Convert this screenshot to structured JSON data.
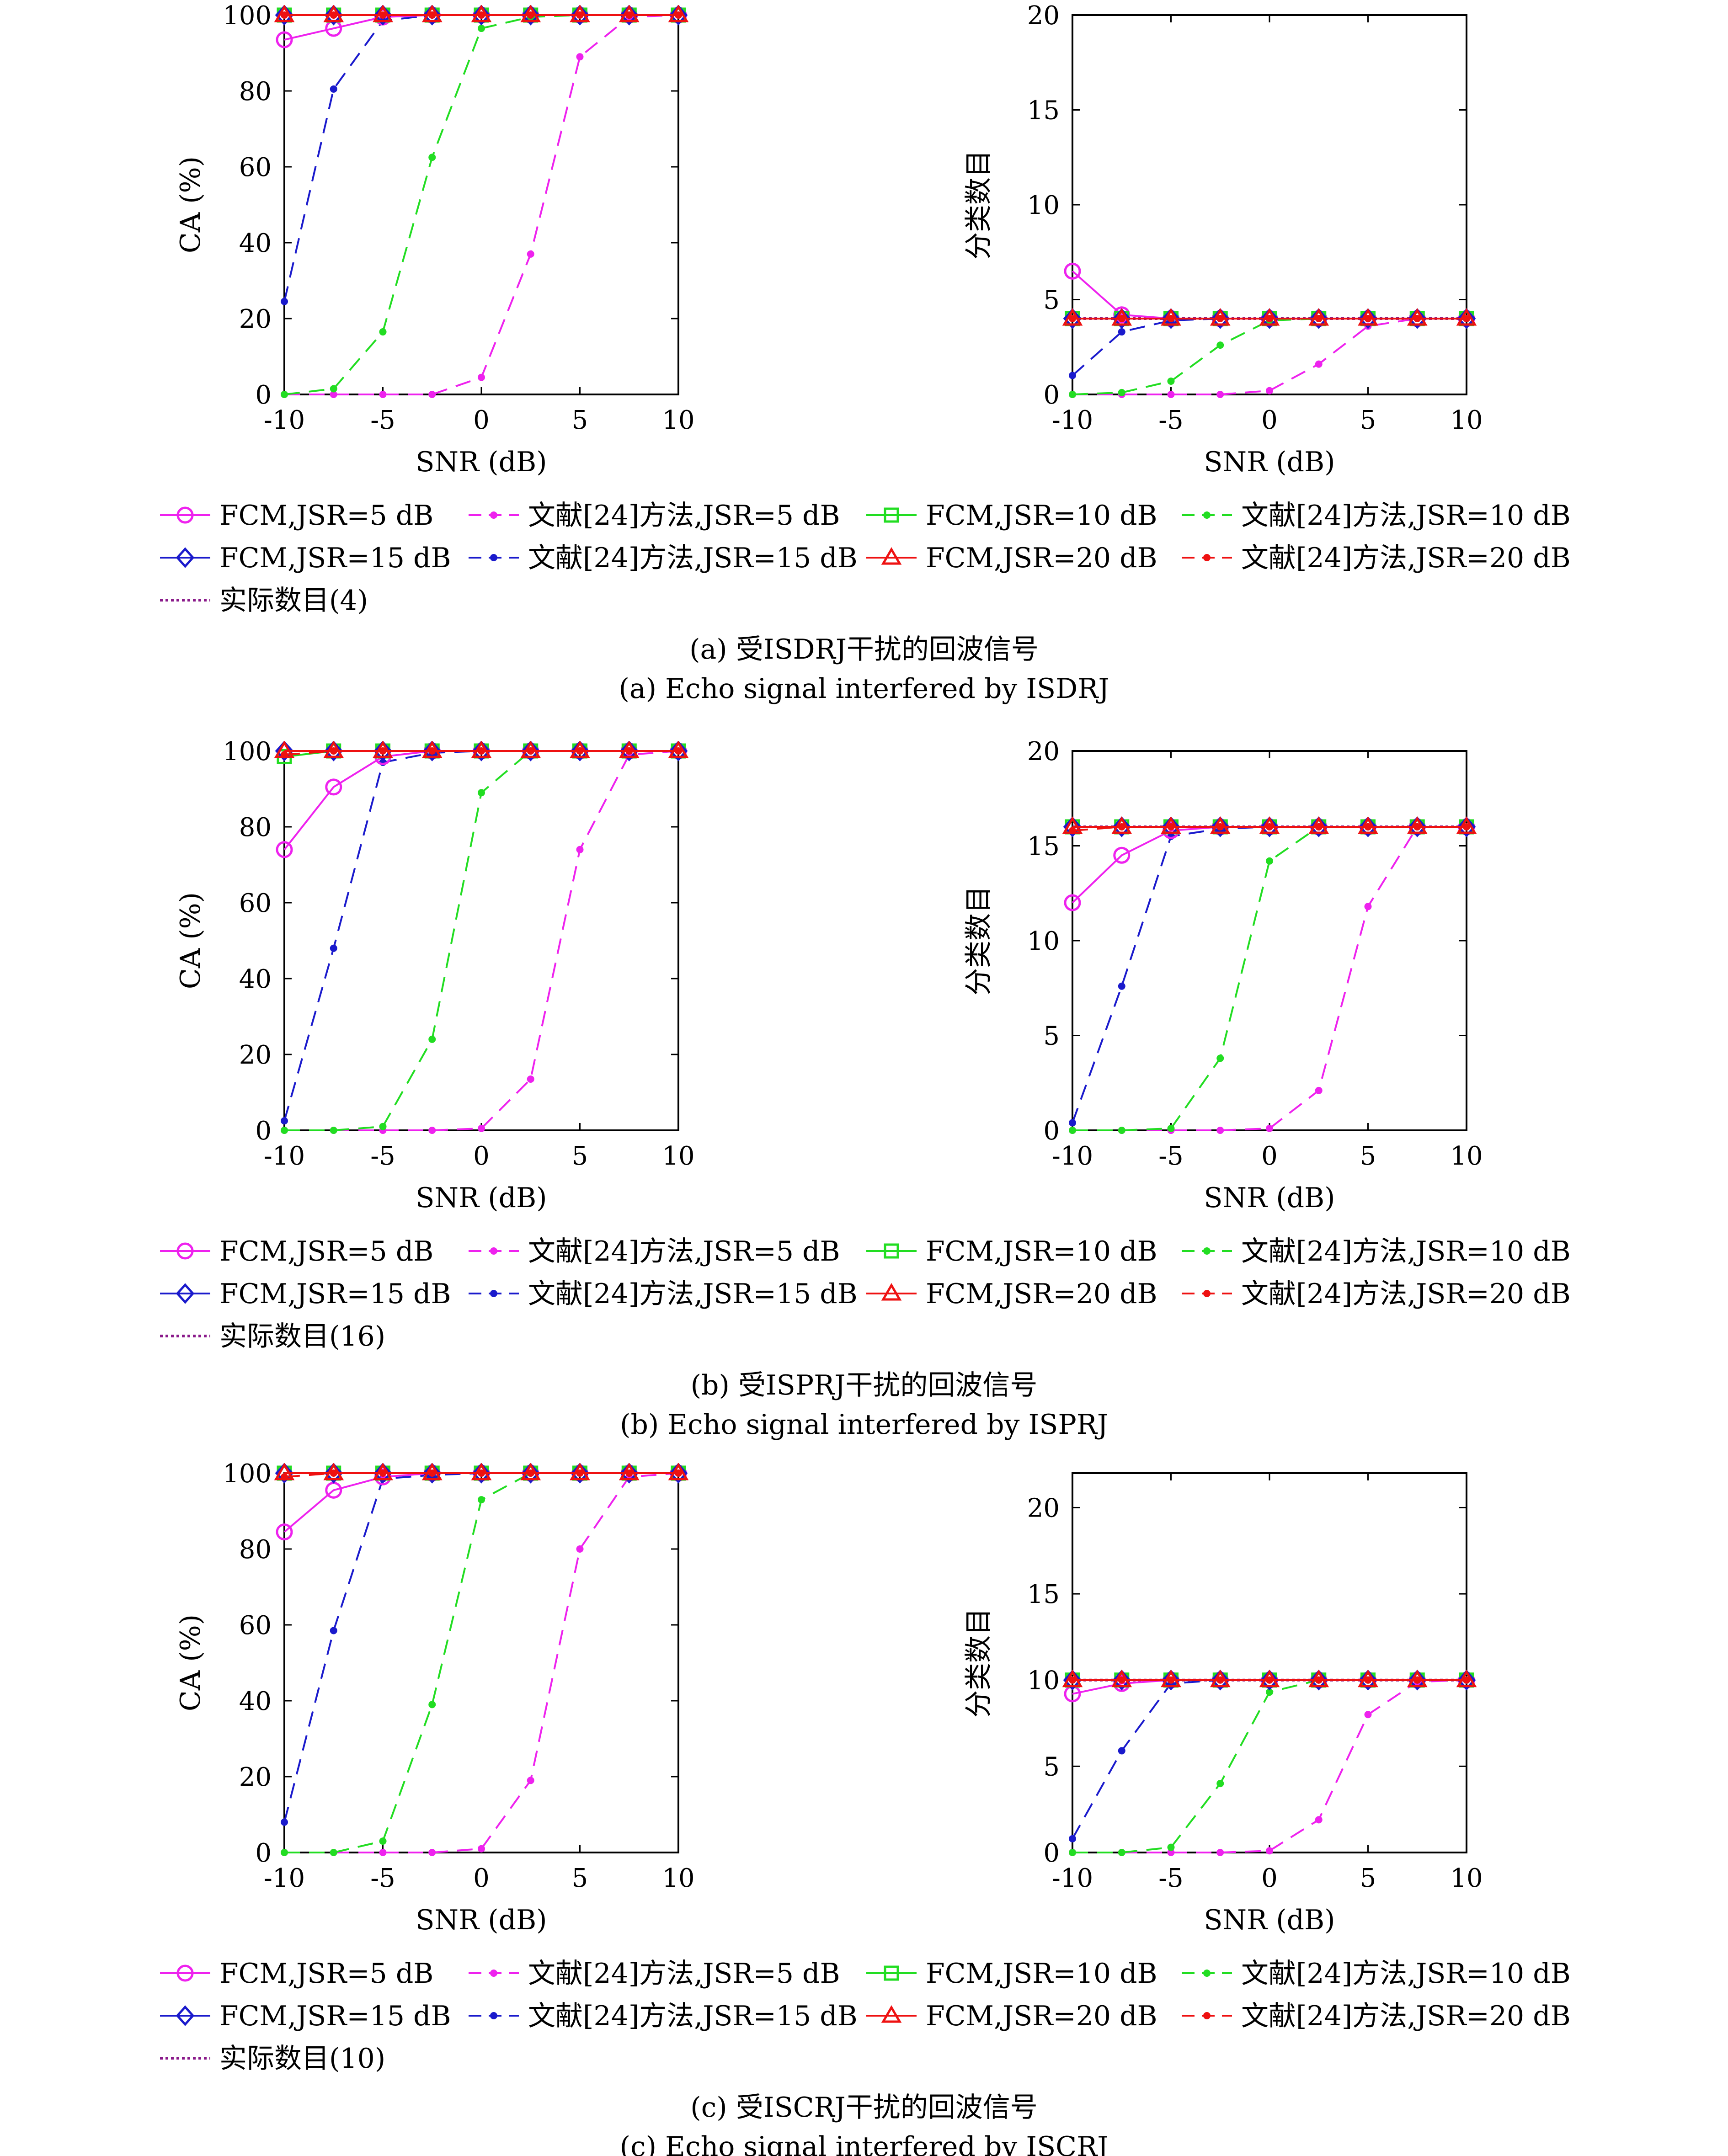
{
  "colors": {
    "magenta": "#ee22ee",
    "green": "#22dd22",
    "blue": "#1a1acc",
    "red": "#ee1111",
    "purple": "#8a1a8a"
  },
  "legend": {
    "entries": [
      {
        "label": "FCM,JSR=5 dB",
        "color": "#ee22ee",
        "dash": "solid",
        "marker": "circle"
      },
      {
        "label": "文献[24]方法,JSR=5 dB",
        "color": "#ee22ee",
        "dash": "dash",
        "marker": "dot"
      },
      {
        "label": "FCM,JSR=10 dB",
        "color": "#22dd22",
        "dash": "solid",
        "marker": "square"
      },
      {
        "label": "文献[24]方法,JSR=10 dB",
        "color": "#22dd22",
        "dash": "dash",
        "marker": "dot"
      },
      {
        "label": "FCM,JSR=15 dB",
        "color": "#1a1acc",
        "dash": "solid",
        "marker": "diamond"
      },
      {
        "label": "文献[24]方法,JSR=15 dB",
        "color": "#1a1acc",
        "dash": "dash",
        "marker": "dot"
      },
      {
        "label": "FCM,JSR=20 dB",
        "color": "#ee1111",
        "dash": "solid",
        "marker": "triangle"
      },
      {
        "label": "文献[24]方法,JSR=20 dB",
        "color": "#ee1111",
        "dash": "dash",
        "marker": "dot"
      }
    ]
  },
  "chart_data": [
    {
      "type": "line",
      "panel": "a-left",
      "xlabel": "SNR (dB)",
      "ylabel": "CA (%)",
      "xlim": [
        -10,
        10
      ],
      "ylim": [
        0,
        100
      ],
      "xticks": [
        -10,
        -5,
        0,
        5,
        10
      ],
      "yticks": [
        0,
        20,
        40,
        60,
        80,
        100
      ],
      "x": [
        -10,
        -7.5,
        -5,
        -2.5,
        0,
        2.5,
        5,
        7.5,
        10
      ],
      "series": [
        {
          "name": "FCM,JSR=5 dB",
          "values": [
            93.5,
            96.5,
            99.5,
            100,
            100,
            100,
            100,
            100,
            100
          ]
        },
        {
          "name": "文献[24]方法,JSR=5 dB",
          "values": [
            0,
            0,
            0,
            0,
            4.5,
            37,
            89,
            99.5,
            100
          ]
        },
        {
          "name": "FCM,JSR=10 dB",
          "values": [
            100,
            100,
            100,
            100,
            100,
            100,
            100,
            100,
            100
          ]
        },
        {
          "name": "文献[24]方法,JSR=10 dB",
          "values": [
            0,
            1.5,
            16.5,
            62.5,
            96.5,
            99.5,
            100,
            100,
            100
          ]
        },
        {
          "name": "FCM,JSR=15 dB",
          "values": [
            100,
            100,
            100,
            100,
            100,
            100,
            100,
            100,
            100
          ]
        },
        {
          "name": "文献[24]方法,JSR=15 dB",
          "values": [
            24.5,
            80.5,
            98.5,
            100,
            100,
            100,
            100,
            100,
            100
          ]
        },
        {
          "name": "FCM,JSR=20 dB",
          "values": [
            100,
            100,
            100,
            100,
            100,
            100,
            100,
            100,
            100
          ]
        },
        {
          "name": "文献[24]方法,JSR=20 dB",
          "values": [
            100,
            100,
            100,
            100,
            100,
            100,
            100,
            100,
            100
          ]
        }
      ]
    },
    {
      "type": "line",
      "panel": "a-right",
      "xlabel": "SNR (dB)",
      "ylabel": "分类数目",
      "xlim": [
        -10,
        10
      ],
      "ylim": [
        0,
        20
      ],
      "xticks": [
        -10,
        -5,
        0,
        5,
        10
      ],
      "yticks": [
        0,
        5,
        10,
        15,
        20
      ],
      "x": [
        -10,
        -7.5,
        -5,
        -2.5,
        0,
        2.5,
        5,
        7.5,
        10
      ],
      "series": [
        {
          "name": "FCM,JSR=5 dB",
          "values": [
            6.5,
            4.2,
            4,
            4,
            4,
            4,
            4,
            4,
            4
          ]
        },
        {
          "name": "文献[24]方法,JSR=5 dB",
          "values": [
            0,
            0,
            0,
            0,
            0.2,
            1.6,
            3.6,
            4,
            4
          ]
        },
        {
          "name": "FCM,JSR=10 dB",
          "values": [
            4,
            4,
            4,
            4,
            4,
            4,
            4,
            4,
            4
          ]
        },
        {
          "name": "文献[24]方法,JSR=10 dB",
          "values": [
            0,
            0.1,
            0.7,
            2.6,
            3.9,
            4,
            4,
            4,
            4
          ]
        },
        {
          "name": "FCM,JSR=15 dB",
          "values": [
            4,
            4,
            4,
            4,
            4,
            4,
            4,
            4,
            4
          ]
        },
        {
          "name": "文献[24]方法,JSR=15 dB",
          "values": [
            1,
            3.3,
            3.9,
            4,
            4,
            4,
            4,
            4,
            4
          ]
        },
        {
          "name": "FCM,JSR=20 dB",
          "values": [
            4,
            4,
            4,
            4,
            4,
            4,
            4,
            4,
            4
          ]
        },
        {
          "name": "文献[24]方法,JSR=20 dB",
          "values": [
            4,
            4,
            4,
            4,
            4,
            4,
            4,
            4,
            4
          ]
        },
        {
          "name": "实际数目(4)",
          "values": [
            4,
            4,
            4,
            4,
            4,
            4,
            4,
            4,
            4
          ]
        }
      ]
    },
    {
      "type": "line",
      "panel": "b-left",
      "xlabel": "SNR (dB)",
      "ylabel": "CA (%)",
      "xlim": [
        -10,
        10
      ],
      "ylim": [
        0,
        100
      ],
      "xticks": [
        -10,
        -5,
        0,
        5,
        10
      ],
      "yticks": [
        0,
        20,
        40,
        60,
        80,
        100
      ],
      "x": [
        -10,
        -7.5,
        -5,
        -2.5,
        0,
        2.5,
        5,
        7.5,
        10
      ],
      "series": [
        {
          "name": "FCM,JSR=5 dB",
          "values": [
            74,
            90.5,
            98.5,
            100,
            100,
            100,
            100,
            100,
            100
          ]
        },
        {
          "name": "文献[24]方法,JSR=5 dB",
          "values": [
            0,
            0,
            0,
            0,
            0.5,
            13.5,
            74,
            99,
            100
          ]
        },
        {
          "name": "FCM,JSR=10 dB",
          "values": [
            98.5,
            100,
            100,
            100,
            100,
            100,
            100,
            100,
            100
          ]
        },
        {
          "name": "文献[24]方法,JSR=10 dB",
          "values": [
            0,
            0,
            1,
            24,
            89,
            100,
            100,
            100,
            100
          ]
        },
        {
          "name": "FCM,JSR=15 dB",
          "values": [
            100,
            100,
            100,
            100,
            100,
            100,
            100,
            100,
            100
          ]
        },
        {
          "name": "文献[24]方法,JSR=15 dB",
          "values": [
            2.5,
            48,
            97,
            99.5,
            100,
            100,
            100,
            100,
            100
          ]
        },
        {
          "name": "FCM,JSR=20 dB",
          "values": [
            100,
            100,
            100,
            100,
            100,
            100,
            100,
            100,
            100
          ]
        },
        {
          "name": "文献[24]方法,JSR=20 dB",
          "values": [
            99,
            100,
            100,
            100,
            100,
            100,
            100,
            100,
            100
          ]
        }
      ]
    },
    {
      "type": "line",
      "panel": "b-right",
      "xlabel": "SNR (dB)",
      "ylabel": "分类数目",
      "xlim": [
        -10,
        10
      ],
      "ylim": [
        0,
        20
      ],
      "xticks": [
        -10,
        -5,
        0,
        5,
        10
      ],
      "yticks": [
        0,
        5,
        10,
        15,
        20
      ],
      "x": [
        -10,
        -7.5,
        -5,
        -2.5,
        0,
        2.5,
        5,
        7.5,
        10
      ],
      "series": [
        {
          "name": "FCM,JSR=5 dB",
          "values": [
            12,
            14.5,
            15.8,
            16,
            16,
            16,
            16,
            16,
            16
          ]
        },
        {
          "name": "文献[24]方法,JSR=5 dB",
          "values": [
            0,
            0,
            0,
            0,
            0.1,
            2.1,
            11.8,
            16,
            16
          ]
        },
        {
          "name": "FCM,JSR=10 dB",
          "values": [
            16,
            16,
            16,
            16,
            16,
            16,
            16,
            16,
            16
          ]
        },
        {
          "name": "文献[24]方法,JSR=10 dB",
          "values": [
            0,
            0,
            0.1,
            3.8,
            14.2,
            16,
            16,
            16,
            16
          ]
        },
        {
          "name": "FCM,JSR=15 dB",
          "values": [
            16,
            16,
            16,
            16,
            16,
            16,
            16,
            16,
            16
          ]
        },
        {
          "name": "文献[24]方法,JSR=15 dB",
          "values": [
            0.4,
            7.6,
            15.5,
            15.9,
            16,
            16,
            16,
            16,
            16
          ]
        },
        {
          "name": "FCM,JSR=20 dB",
          "values": [
            16,
            16,
            16,
            16,
            16,
            16,
            16,
            16,
            16
          ]
        },
        {
          "name": "文献[24]方法,JSR=20 dB",
          "values": [
            15.8,
            16,
            16,
            16,
            16,
            16,
            16,
            16,
            16
          ]
        },
        {
          "name": "实际数目(16)",
          "values": [
            16,
            16,
            16,
            16,
            16,
            16,
            16,
            16,
            16
          ]
        }
      ]
    },
    {
      "type": "line",
      "panel": "c-left",
      "xlabel": "SNR (dB)",
      "ylabel": "CA (%)",
      "xlim": [
        -10,
        10
      ],
      "ylim": [
        0,
        100
      ],
      "xticks": [
        -10,
        -5,
        0,
        5,
        10
      ],
      "yticks": [
        0,
        20,
        40,
        60,
        80,
        100
      ],
      "x": [
        -10,
        -7.5,
        -5,
        -2.5,
        0,
        2.5,
        5,
        7.5,
        10
      ],
      "series": [
        {
          "name": "FCM,JSR=5 dB",
          "values": [
            84.5,
            95.5,
            99,
            100,
            100,
            100,
            100,
            100,
            100
          ]
        },
        {
          "name": "文献[24]方法,JSR=5 dB",
          "values": [
            0,
            0,
            0,
            0,
            1,
            19,
            80,
            99,
            100
          ]
        },
        {
          "name": "FCM,JSR=10 dB",
          "values": [
            100,
            100,
            100,
            100,
            100,
            100,
            100,
            100,
            100
          ]
        },
        {
          "name": "文献[24]方法,JSR=10 dB",
          "values": [
            0,
            0,
            3,
            39,
            93,
            100,
            100,
            100,
            100
          ]
        },
        {
          "name": "FCM,JSR=15 dB",
          "values": [
            100,
            100,
            100,
            100,
            100,
            100,
            100,
            100,
            100
          ]
        },
        {
          "name": "文献[24]方法,JSR=15 dB",
          "values": [
            8,
            58.5,
            98.5,
            99.5,
            100,
            100,
            100,
            100,
            100
          ]
        },
        {
          "name": "FCM,JSR=20 dB",
          "values": [
            100,
            100,
            100,
            100,
            100,
            100,
            100,
            100,
            100
          ]
        },
        {
          "name": "文献[24]方法,JSR=20 dB",
          "values": [
            99,
            100,
            100,
            100,
            100,
            100,
            100,
            100,
            100
          ]
        }
      ]
    },
    {
      "type": "line",
      "panel": "c-right",
      "xlabel": "SNR (dB)",
      "ylabel": "分类数目",
      "xlim": [
        -10,
        10
      ],
      "ylim": [
        0,
        22
      ],
      "xticks": [
        -10,
        -5,
        0,
        5,
        10
      ],
      "yticks": [
        0,
        5,
        10,
        15,
        20
      ],
      "x": [
        -10,
        -7.5,
        -5,
        -2.5,
        0,
        2.5,
        5,
        7.5,
        10
      ],
      "series": [
        {
          "name": "FCM,JSR=5 dB",
          "values": [
            9.2,
            9.8,
            10,
            10,
            10,
            10,
            10,
            10,
            10
          ]
        },
        {
          "name": "文献[24]方法,JSR=5 dB",
          "values": [
            0,
            0,
            0,
            0,
            0.1,
            1.9,
            8,
            9.9,
            10
          ]
        },
        {
          "name": "FCM,JSR=10 dB",
          "values": [
            10,
            10,
            10,
            10,
            10,
            10,
            10,
            10,
            10
          ]
        },
        {
          "name": "文献[24]方法,JSR=10 dB",
          "values": [
            0,
            0,
            0.3,
            4,
            9.3,
            10,
            10,
            10,
            10
          ]
        },
        {
          "name": "FCM,JSR=15 dB",
          "values": [
            10,
            10,
            10,
            10,
            10,
            10,
            10,
            10,
            10
          ]
        },
        {
          "name": "文献[24]方法,JSR=15 dB",
          "values": [
            0.8,
            5.9,
            9.8,
            10,
            10,
            10,
            10,
            10,
            10
          ]
        },
        {
          "name": "FCM,JSR=20 dB",
          "values": [
            10,
            10,
            10,
            10,
            10,
            10,
            10,
            10,
            10
          ]
        },
        {
          "name": "文献[24]方法,JSR=20 dB",
          "values": [
            10,
            10,
            10,
            10,
            10,
            10,
            10,
            10,
            10
          ]
        },
        {
          "name": "实际数目(10)",
          "values": [
            10,
            10,
            10,
            10,
            10,
            10,
            10,
            10,
            10
          ]
        }
      ]
    }
  ],
  "groups": [
    {
      "actual_label": "实际数目(4)",
      "caption_cn": "(a) 受ISDRJ干扰的回波信号",
      "caption_en": "(a) Echo signal interfered by ISDRJ"
    },
    {
      "actual_label": "实际数目(16)",
      "caption_cn": "(b) 受ISPRJ干扰的回波信号",
      "caption_en": "(b) Echo signal interfered by ISPRJ"
    },
    {
      "actual_label": "实际数目(10)",
      "caption_cn": "(c) 受ISCRJ干扰的回波信号",
      "caption_en": "(c) Echo signal interfered by ISCRJ"
    }
  ]
}
